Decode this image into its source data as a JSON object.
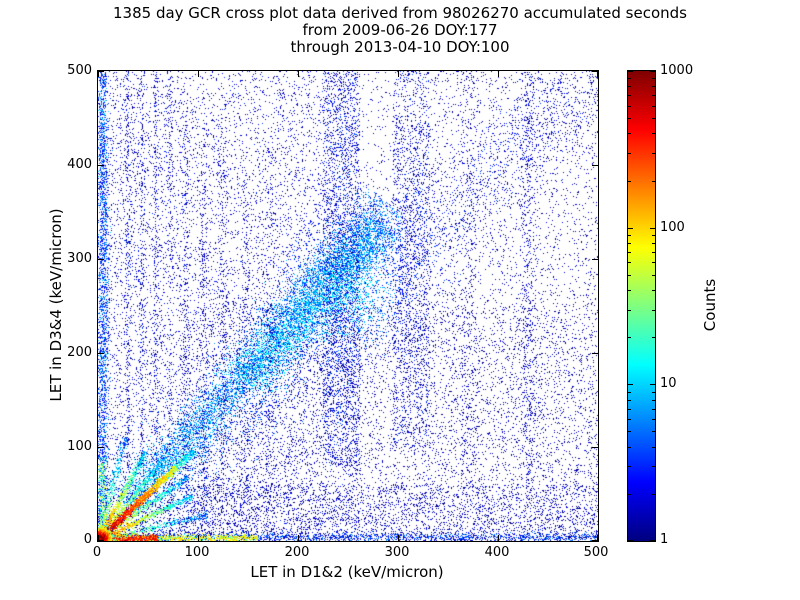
{
  "chart_data": {
    "type": "heatmap",
    "title": "1385 day GCR cross plot data derived from 98026270 accumulated seconds",
    "subtitle1": "from 2009-06-26 DOY:177",
    "subtitle2": "through 2013-04-10 DOY:100",
    "xlabel": "LET in D1&2 (keV/micron)",
    "ylabel": "LET in D3&4 (keV/micron)",
    "xlim": [
      0,
      500
    ],
    "ylim": [
      0,
      500
    ],
    "x_ticks": [
      0,
      100,
      200,
      300,
      400,
      500
    ],
    "y_ticks": [
      0,
      100,
      200,
      300,
      400,
      500
    ],
    "grid": false,
    "colorbar": {
      "label": "Counts",
      "scale": "log",
      "min": 1,
      "max": 1000,
      "ticks": [
        1000,
        100,
        10,
        1
      ],
      "colormap": "jet"
    },
    "features": [
      {
        "type": "uniform",
        "x": [
          0,
          500
        ],
        "y": [
          0,
          500
        ],
        "n": 7000,
        "count": [
          1,
          3
        ]
      },
      {
        "type": "uniform",
        "x": [
          0,
          260
        ],
        "y": [
          0,
          500
        ],
        "n": 5200,
        "count": [
          1,
          4
        ]
      },
      {
        "type": "uniform",
        "x": [
          80,
          500
        ],
        "y": [
          0,
          250
        ],
        "n": 3500,
        "count": [
          1,
          2
        ]
      },
      {
        "type": "uniform",
        "x": [
          300,
          500
        ],
        "y": [
          0,
          500
        ],
        "n": 1500,
        "count": [
          1,
          2
        ]
      },
      {
        "type": "uniform",
        "x": [
          0,
          500
        ],
        "y": [
          0,
          60
        ],
        "n": 2500,
        "count": [
          1,
          4
        ]
      },
      {
        "type": "line",
        "p0": [
          60,
          60
        ],
        "p1": [
          500,
          500
        ],
        "sigma": 25,
        "n": 2500,
        "c0": 5,
        "c1": 2
      },
      {
        "type": "line",
        "p0": [
          30,
          35
        ],
        "p1": [
          290,
          360
        ],
        "sigma": 9,
        "sigma1": 16,
        "n": 5200,
        "c0": 8,
        "c1": 5
      },
      {
        "type": "line",
        "p0": [
          150,
          170
        ],
        "p1": [
          285,
          335
        ],
        "sigma": 13,
        "n": 2800,
        "c0": 11,
        "c1": 7
      },
      {
        "type": "gauss",
        "cx": 248,
        "cy": 268,
        "sx": 38,
        "sy": 45,
        "n": 1400,
        "cmax": 12
      },
      {
        "type": "vband",
        "x": [
          225,
          262
        ],
        "y": [
          80,
          500
        ],
        "n": 2200,
        "count": [
          1,
          6
        ]
      },
      {
        "type": "vband",
        "x": [
          295,
          332
        ],
        "y": [
          100,
          500
        ],
        "n": 1500,
        "count": [
          1,
          5
        ]
      },
      {
        "type": "vline",
        "x": 430,
        "sigma": 4,
        "y": [
          60,
          500
        ],
        "n": 500,
        "count": [
          1,
          4
        ]
      },
      {
        "type": "vline",
        "x": 370,
        "sigma": 5,
        "y": [
          60,
          500
        ],
        "n": 330,
        "count": [
          1,
          3
        ]
      },
      {
        "type": "vline",
        "x": 30,
        "sigma": 1.5,
        "y": [
          0,
          500
        ],
        "n": 340,
        "count": [
          1,
          5
        ]
      },
      {
        "type": "vline",
        "x": 44,
        "sigma": 1.5,
        "y": [
          0,
          500
        ],
        "n": 300,
        "count": [
          1,
          5
        ]
      },
      {
        "type": "vline",
        "x": 58,
        "sigma": 1.5,
        "y": [
          0,
          500
        ],
        "n": 300,
        "count": [
          1,
          4
        ]
      },
      {
        "type": "vline",
        "x": 72,
        "sigma": 1.8,
        "y": [
          0,
          480
        ],
        "n": 280,
        "count": [
          1,
          4
        ]
      },
      {
        "type": "vline",
        "x": 88,
        "sigma": 2,
        "y": [
          0,
          460
        ],
        "n": 250,
        "count": [
          1,
          4
        ]
      },
      {
        "type": "vline",
        "x": 105,
        "sigma": 2,
        "y": [
          0,
          440
        ],
        "n": 220,
        "count": [
          1,
          3
        ]
      },
      {
        "type": "vline",
        "x": 125,
        "sigma": 2.2,
        "y": [
          0,
          420
        ],
        "n": 200,
        "count": [
          1,
          3
        ]
      },
      {
        "type": "vline",
        "x": 148,
        "sigma": 2.5,
        "y": [
          0,
          400
        ],
        "n": 200,
        "count": [
          1,
          3
        ]
      },
      {
        "type": "vline",
        "x": 172,
        "sigma": 2.5,
        "y": [
          0,
          380
        ],
        "n": 180,
        "count": [
          1,
          3
        ]
      },
      {
        "type": "vline",
        "x": 5,
        "sigma": 3,
        "y": [
          0,
          500
        ],
        "n": 2100,
        "count": [
          2,
          12
        ]
      },
      {
        "type": "vline",
        "x": 4,
        "sigma": 2.5,
        "y": [
          0,
          90
        ],
        "n": 350,
        "count": [
          8,
          90
        ]
      },
      {
        "type": "hline",
        "y": 4,
        "sigma": 2.5,
        "x": [
          0,
          500
        ],
        "n": 1500,
        "count": [
          1,
          6
        ]
      },
      {
        "type": "hline",
        "y": 3,
        "sigma": 2,
        "x": [
          0,
          160
        ],
        "n": 1100,
        "count": [
          10,
          120
        ]
      },
      {
        "type": "hline",
        "y": 3,
        "sigma": 1.8,
        "x": [
          0,
          60
        ],
        "n": 800,
        "count": [
          100,
          600
        ]
      },
      {
        "type": "line",
        "p0": [
          0,
          0
        ],
        "p1": [
          110,
          28
        ],
        "sigma": 2,
        "n": 400,
        "c0": 80,
        "c1": 4
      },
      {
        "type": "line",
        "p0": [
          0,
          0
        ],
        "p1": [
          28,
          110
        ],
        "sigma": 2,
        "n": 400,
        "c0": 80,
        "c1": 4
      },
      {
        "type": "line",
        "p0": [
          0,
          0
        ],
        "p1": [
          95,
          48
        ],
        "sigma": 1.5,
        "n": 700,
        "c0": 300,
        "c1": 8
      },
      {
        "type": "line",
        "p0": [
          0,
          0
        ],
        "p1": [
          48,
          95
        ],
        "sigma": 1.5,
        "n": 700,
        "c0": 300,
        "c1": 8
      },
      {
        "type": "line",
        "p0": [
          0,
          0
        ],
        "p1": [
          90,
          68
        ],
        "sigma": 1.5,
        "n": 500,
        "c0": 150,
        "c1": 6
      },
      {
        "type": "line",
        "p0": [
          0,
          0
        ],
        "p1": [
          68,
          90
        ],
        "sigma": 1.5,
        "n": 500,
        "c0": 150,
        "c1": 6
      },
      {
        "type": "line",
        "p0": [
          78,
          78
        ],
        "p1": [
          96,
          96
        ],
        "sigma": 2,
        "n": 220,
        "c0": 20,
        "c1": 8
      },
      {
        "type": "line",
        "p0": [
          0,
          0
        ],
        "p1": [
          78,
          78
        ],
        "sigma": 1.6,
        "n": 2300,
        "c0": 900,
        "c1": 60
      },
      {
        "type": "gauss",
        "cx": 2,
        "cy": 2,
        "sx": 5,
        "sy": 5,
        "n": 4200,
        "cmax": 1000
      }
    ]
  }
}
